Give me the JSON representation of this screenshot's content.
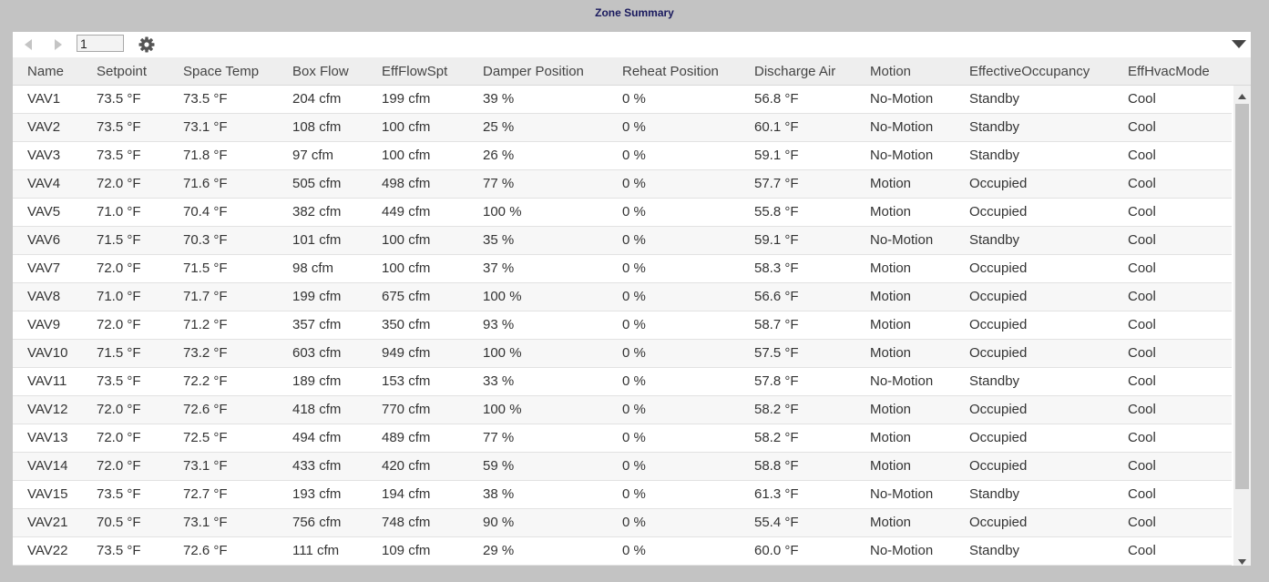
{
  "title": "Zone Summary",
  "toolbar": {
    "page_value": "1",
    "prev_icon": "chevron-left-icon",
    "next_icon": "chevron-right-icon",
    "settings_icon": "gear-icon",
    "menu_icon": "dropdown-triangle-icon"
  },
  "columns": [
    "Name",
    "Setpoint",
    "Space Temp",
    "Box Flow",
    "EffFlowSpt",
    "Damper Position",
    "Reheat Position",
    "Discharge Air",
    "Motion",
    "EffectiveOccupancy",
    "EffHvacMode"
  ],
  "rows": [
    [
      "VAV1",
      "73.5 °F",
      "73.5 °F",
      "204 cfm",
      "199 cfm",
      "39 %",
      "0 %",
      "56.8 °F",
      "No-Motion",
      "Standby",
      "Cool"
    ],
    [
      "VAV2",
      "73.5 °F",
      "73.1 °F",
      "108 cfm",
      "100 cfm",
      "25 %",
      "0 %",
      "60.1 °F",
      "No-Motion",
      "Standby",
      "Cool"
    ],
    [
      "VAV3",
      "73.5 °F",
      "71.8 °F",
      "97 cfm",
      "100 cfm",
      "26 %",
      "0 %",
      "59.1 °F",
      "No-Motion",
      "Standby",
      "Cool"
    ],
    [
      "VAV4",
      "72.0 °F",
      "71.6 °F",
      "505 cfm",
      "498 cfm",
      "77 %",
      "0 %",
      "57.7 °F",
      "Motion",
      "Occupied",
      "Cool"
    ],
    [
      "VAV5",
      "71.0 °F",
      "70.4 °F",
      "382 cfm",
      "449 cfm",
      "100 %",
      "0 %",
      "55.8 °F",
      "Motion",
      "Occupied",
      "Cool"
    ],
    [
      "VAV6",
      "71.5 °F",
      "70.3 °F",
      "101 cfm",
      "100 cfm",
      "35 %",
      "0 %",
      "59.1 °F",
      "No-Motion",
      "Standby",
      "Cool"
    ],
    [
      "VAV7",
      "72.0 °F",
      "71.5 °F",
      "98 cfm",
      "100 cfm",
      "37 %",
      "0 %",
      "58.3 °F",
      "Motion",
      "Occupied",
      "Cool"
    ],
    [
      "VAV8",
      "71.0 °F",
      "71.7 °F",
      "199 cfm",
      "675 cfm",
      "100 %",
      "0 %",
      "56.6 °F",
      "Motion",
      "Occupied",
      "Cool"
    ],
    [
      "VAV9",
      "72.0 °F",
      "71.2 °F",
      "357 cfm",
      "350 cfm",
      "93 %",
      "0 %",
      "58.7 °F",
      "Motion",
      "Occupied",
      "Cool"
    ],
    [
      "VAV10",
      "71.5 °F",
      "73.2 °F",
      "603 cfm",
      "949 cfm",
      "100 %",
      "0 %",
      "57.5 °F",
      "Motion",
      "Occupied",
      "Cool"
    ],
    [
      "VAV11",
      "73.5 °F",
      "72.2 °F",
      "189 cfm",
      "153 cfm",
      "33 %",
      "0 %",
      "57.8 °F",
      "No-Motion",
      "Standby",
      "Cool"
    ],
    [
      "VAV12",
      "72.0 °F",
      "72.6 °F",
      "418 cfm",
      "770 cfm",
      "100 %",
      "0 %",
      "58.2 °F",
      "Motion",
      "Occupied",
      "Cool"
    ],
    [
      "VAV13",
      "72.0 °F",
      "72.5 °F",
      "494 cfm",
      "489 cfm",
      "77 %",
      "0 %",
      "58.2 °F",
      "Motion",
      "Occupied",
      "Cool"
    ],
    [
      "VAV14",
      "72.0 °F",
      "73.1 °F",
      "433 cfm",
      "420 cfm",
      "59 %",
      "0 %",
      "58.8 °F",
      "Motion",
      "Occupied",
      "Cool"
    ],
    [
      "VAV15",
      "73.5 °F",
      "72.7 °F",
      "193 cfm",
      "194 cfm",
      "38 %",
      "0 %",
      "61.3 °F",
      "No-Motion",
      "Standby",
      "Cool"
    ],
    [
      "VAV21",
      "70.5 °F",
      "73.1 °F",
      "756 cfm",
      "748 cfm",
      "90 %",
      "0 %",
      "55.4 °F",
      "Motion",
      "Occupied",
      "Cool"
    ],
    [
      "VAV22",
      "73.5 °F",
      "72.6 °F",
      "111 cfm",
      "109 cfm",
      "29 %",
      "0 %",
      "60.0 °F",
      "No-Motion",
      "Standby",
      "Cool"
    ]
  ],
  "colors": {
    "background": "#c3c3c3",
    "title": "#1a1a5e",
    "header_bg": "#eeeeee",
    "row_alt_bg": "#f7f7f7"
  }
}
